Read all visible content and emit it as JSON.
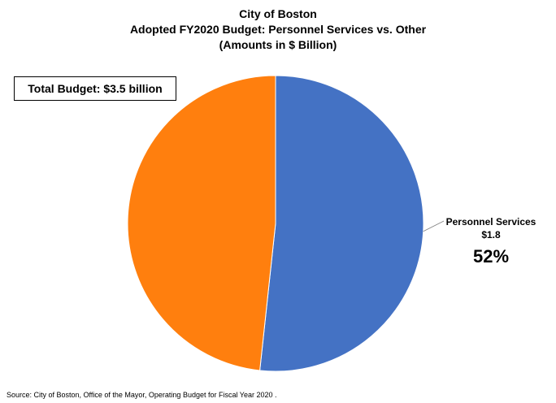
{
  "chart_data": {
    "type": "pie",
    "title": "City of Boston",
    "title_lines": [
      "City of Boston",
      "Adopted FY2020 Budget: Personnel Services vs. Other",
      "(Amounts in $ Billion)"
    ],
    "annotation": "Total Budget: $3.5 billion",
    "slices": [
      {
        "name": "Personnel Services",
        "value_label": "$1.8",
        "percent_label": "52%",
        "share": 0.517,
        "color": "#4472c4"
      },
      {
        "name": "",
        "value_label": "",
        "percent_label": "",
        "share": 0.483,
        "color": "#ff7f0e"
      }
    ],
    "source": "Source: City of Boston, Office of the Mayor, Operating Budget for Fiscal Year 2020 ."
  }
}
